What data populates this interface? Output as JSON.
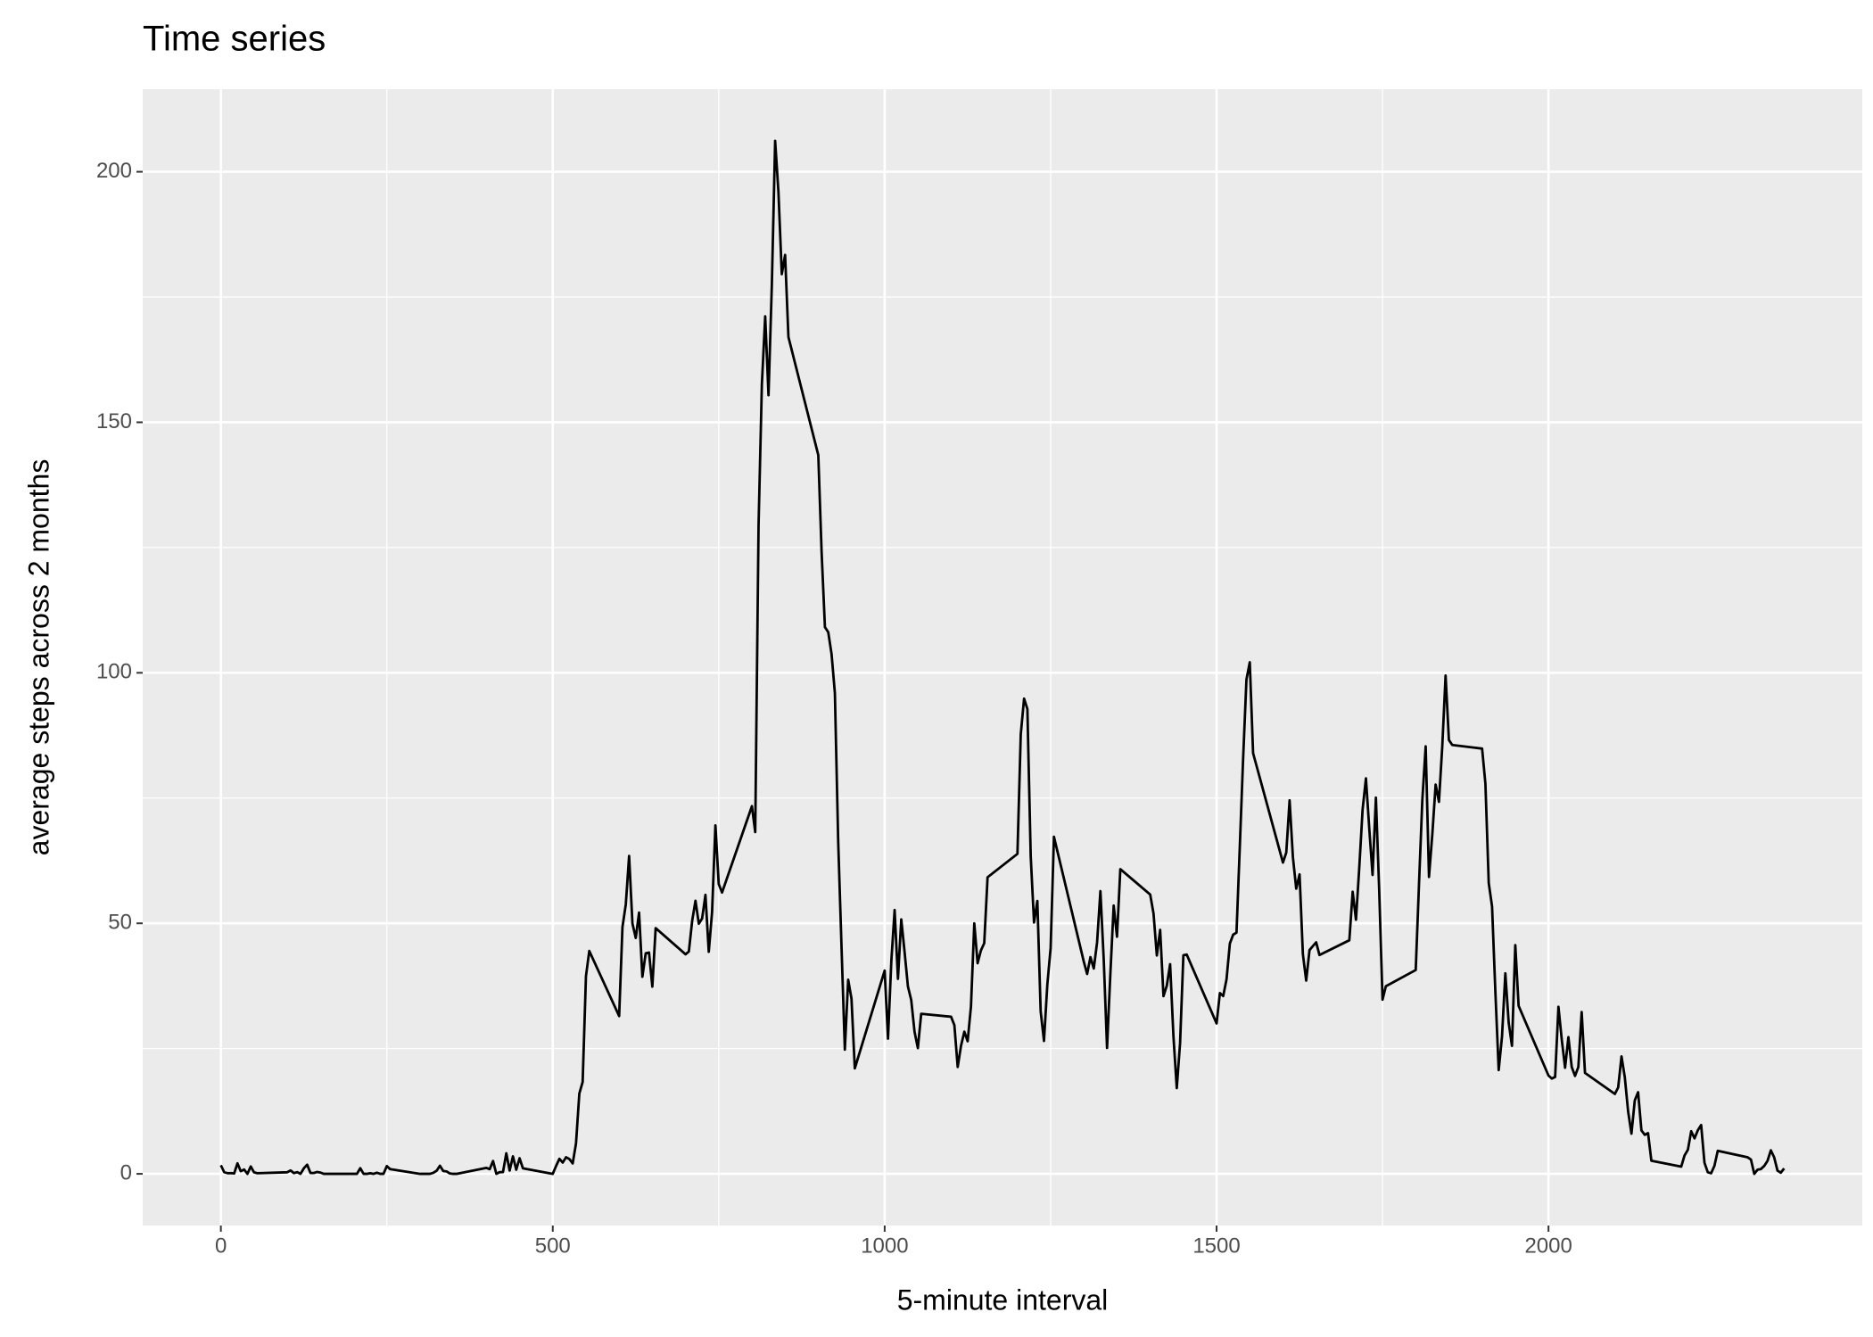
{
  "chart_data": {
    "type": "line",
    "title": "Time series",
    "x_label": "5-minute interval",
    "y_label": "average steps across 2 months",
    "color": "#000000",
    "grid": true,
    "xlim": [
      -117.75,
      2472.75
    ],
    "ylim": [
      -10.31,
      216.48
    ],
    "xticks": [
      0,
      500,
      1000,
      1500,
      2000
    ],
    "yticks": [
      0,
      50,
      100,
      150,
      200
    ],
    "x": [
      0,
      5,
      10,
      15,
      20,
      25,
      30,
      35,
      40,
      45,
      50,
      55,
      100,
      105,
      110,
      115,
      120,
      125,
      130,
      135,
      140,
      145,
      150,
      155,
      200,
      205,
      210,
      215,
      220,
      225,
      230,
      235,
      240,
      245,
      250,
      255,
      300,
      305,
      310,
      315,
      320,
      325,
      330,
      335,
      340,
      345,
      350,
      355,
      400,
      405,
      410,
      415,
      420,
      425,
      430,
      435,
      440,
      445,
      450,
      455,
      500,
      505,
      510,
      515,
      520,
      525,
      530,
      535,
      540,
      545,
      550,
      555,
      600,
      605,
      610,
      615,
      620,
      625,
      630,
      635,
      640,
      645,
      650,
      655,
      700,
      705,
      710,
      715,
      720,
      725,
      730,
      735,
      740,
      745,
      750,
      755,
      800,
      805,
      810,
      815,
      820,
      825,
      830,
      835,
      840,
      845,
      850,
      855,
      900,
      905,
      910,
      915,
      920,
      925,
      930,
      935,
      940,
      945,
      950,
      955,
      1000,
      1005,
      1010,
      1015,
      1020,
      1025,
      1030,
      1035,
      1040,
      1045,
      1050,
      1055,
      1100,
      1105,
      1110,
      1115,
      1120,
      1125,
      1130,
      1135,
      1140,
      1145,
      1150,
      1155,
      1200,
      1205,
      1210,
      1215,
      1220,
      1225,
      1230,
      1235,
      1240,
      1245,
      1250,
      1255,
      1300,
      1305,
      1310,
      1315,
      1320,
      1325,
      1330,
      1335,
      1340,
      1345,
      1350,
      1355,
      1400,
      1405,
      1410,
      1415,
      1420,
      1425,
      1430,
      1435,
      1440,
      1445,
      1450,
      1455,
      1500,
      1505,
      1510,
      1515,
      1520,
      1525,
      1530,
      1535,
      1540,
      1545,
      1550,
      1555,
      1600,
      1605,
      1610,
      1615,
      1620,
      1625,
      1630,
      1635,
      1640,
      1645,
      1650,
      1655,
      1700,
      1705,
      1710,
      1715,
      1720,
      1725,
      1730,
      1735,
      1740,
      1745,
      1750,
      1755,
      1800,
      1805,
      1810,
      1815,
      1820,
      1825,
      1830,
      1835,
      1840,
      1845,
      1850,
      1855,
      1900,
      1905,
      1910,
      1915,
      1920,
      1925,
      1930,
      1935,
      1940,
      1945,
      1950,
      1955,
      2000,
      2005,
      2010,
      2015,
      2020,
      2025,
      2030,
      2035,
      2040,
      2045,
      2050,
      2055,
      2100,
      2105,
      2110,
      2115,
      2120,
      2125,
      2130,
      2135,
      2140,
      2145,
      2150,
      2155,
      2200,
      2205,
      2210,
      2215,
      2220,
      2225,
      2230,
      2235,
      2240,
      2245,
      2250,
      2255,
      2300,
      2305,
      2310,
      2315,
      2320,
      2325,
      2330,
      2335,
      2340,
      2345,
      2350,
      2355
    ],
    "values": [
      1.72,
      0.34,
      0.13,
      0.15,
      0.08,
      2.09,
      0.53,
      0.87,
      0,
      1.47,
      0.3,
      0.13,
      0.32,
      0.68,
      0.15,
      0.34,
      0,
      1.11,
      1.83,
      0.17,
      0.17,
      0.38,
      0.26,
      0,
      0,
      0,
      1.13,
      0,
      0,
      0.13,
      0,
      0.23,
      0,
      0,
      1.55,
      0.94,
      0,
      0,
      0,
      0,
      0.21,
      0.62,
      1.62,
      0.58,
      0.49,
      0.08,
      0,
      0,
      1.19,
      0.94,
      2.57,
      0,
      0.34,
      0.36,
      4.11,
      0.66,
      3.49,
      0.83,
      3.11,
      1.11,
      0,
      1.57,
      3,
      2.25,
      3.32,
      2.96,
      2.09,
      6.06,
      16.02,
      18.34,
      39.45,
      44.49,
      31.49,
      49.26,
      53.77,
      63.45,
      49.96,
      47.08,
      52.15,
      39.34,
      44.02,
      44.17,
      37.36,
      49.04,
      43.81,
      44.38,
      50.51,
      54.51,
      49.92,
      50.98,
      55.68,
      44.32,
      52.26,
      69.55,
      57.85,
      56.15,
      73.38,
      68.21,
      129.43,
      157.53,
      171.15,
      155.4,
      177.3,
      206.17,
      195.92,
      179.57,
      183.4,
      167.02,
      143.45,
      124.04,
      109.11,
      108.11,
      103.72,
      95.96,
      66.21,
      45.23,
      24.79,
      38.75,
      34.98,
      21.06,
      40.57,
      26.98,
      42.42,
      52.66,
      38.92,
      50.79,
      44.28,
      37.42,
      34.7,
      28.34,
      25.09,
      31.94,
      31.36,
      29.68,
      21.32,
      25.55,
      28.38,
      26.47,
      33.43,
      49.98,
      42.04,
      44.6,
      46.04,
      59.19,
      63.87,
      87.7,
      94.85,
      92.77,
      63.4,
      50.17,
      54.47,
      32.42,
      26.53,
      37.74,
      45.06,
      67.28,
      42.34,
      39.89,
      43.26,
      40.98,
      46.25,
      56.43,
      42.75,
      25.13,
      39.96,
      53.55,
      47.32,
      60.81,
      55.75,
      51.96,
      43.58,
      48.7,
      35.47,
      37.55,
      41.85,
      27.51,
      17.11,
      26.08,
      43.62,
      43.77,
      30.02,
      36.08,
      35.49,
      38.85,
      45.96,
      47.75,
      48.13,
      65.32,
      82.91,
      98.66,
      102.11,
      83.96,
      62.13,
      64.13,
      74.55,
      63.17,
      56.91,
      59.77,
      43.87,
      38.57,
      44.66,
      45.45,
      46.21,
      43.68,
      46.62,
      56.3,
      50.72,
      61.23,
      72.72,
      78.94,
      68.94,
      59.66,
      75.09,
      56.51,
      34.77,
      37.45,
      40.68,
      58.02,
      74.7,
      85.32,
      59.26,
      67.77,
      77.7,
      74.25,
      85.34,
      99.45,
      86.58,
      85.6,
      84.87,
      77.83,
      58.04,
      53.36,
      36.32,
      20.72,
      27.4,
      40.02,
      30.21,
      25.55,
      45.66,
      33.53,
      19.62,
      19.02,
      19.34,
      33.34,
      26.81,
      21.17,
      27.3,
      21.34,
      19.55,
      21.32,
      32.3,
      20.15,
      15.94,
      17.23,
      23.45,
      19.25,
      12.45,
      8.02,
      14.66,
      16.3,
      8.68,
      7.79,
      8.13,
      2.62,
      1.45,
      3.68,
      4.81,
      8.51,
      7.08,
      8.7,
      9.75,
      2.21,
      0.32,
      0.11,
      1.6,
      4.6,
      3.3,
      2.85,
      0,
      0.83,
      0.96,
      1.58,
      2.6,
      4.7,
      3.3,
      0.64,
      0.23,
      1.08
    ]
  }
}
